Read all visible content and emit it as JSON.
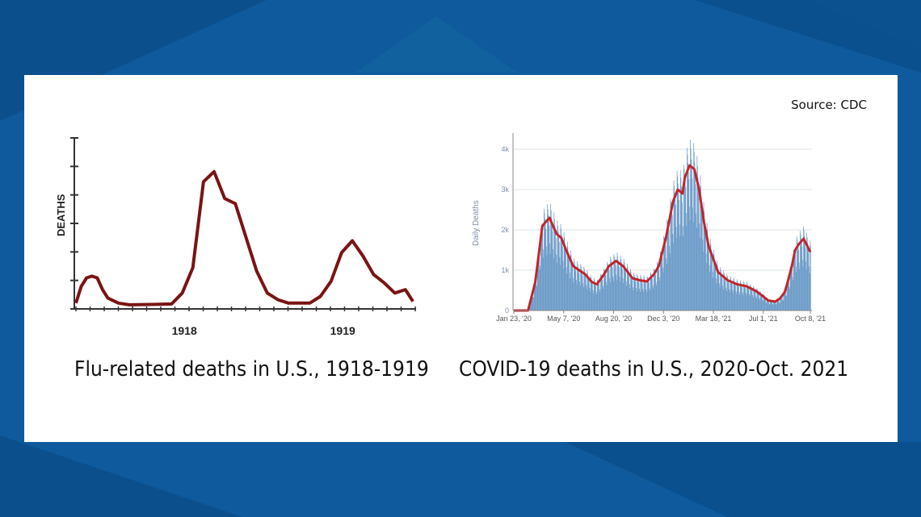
{
  "source": "Source: CDC",
  "colors": {
    "background": "#0e5a9c",
    "flu_line": "#7a1414",
    "covid_line": "#c0262d",
    "covid_bars": "#6e9dc9",
    "covid_axis_text": "#7b8fa8"
  },
  "chart_data": [
    {
      "type": "line",
      "caption": "Flu-related deaths in U.S., 1918-1919",
      "ylabel": "DEATHS",
      "tick_labels": [
        "1918",
        "1919"
      ],
      "y_ticks": 6,
      "y_range": [
        0,
        100
      ],
      "x": [
        0,
        0.5,
        1.0,
        1.5,
        2.0,
        2.5,
        3.0,
        4.0,
        5.0,
        7.0,
        9.0,
        10.0,
        11.0,
        12.0,
        13.0,
        14.0,
        15.0,
        16.0,
        17.0,
        18.0,
        19.0,
        20.0,
        21.0,
        22.0,
        23.0,
        24.0,
        25.0,
        26.0,
        27.0,
        28.0,
        29.0,
        30.0,
        31.0,
        31.7
      ],
      "values": [
        2,
        12,
        17,
        18,
        17,
        10,
        5,
        2,
        1,
        1.2,
        1.5,
        8,
        23,
        74,
        80,
        64,
        61,
        41,
        21,
        8,
        4,
        2,
        2,
        2,
        6,
        15,
        32,
        39,
        30,
        19,
        14,
        8,
        10,
        3
      ],
      "year_tick_positions": [
        10.2,
        25.1
      ]
    },
    {
      "type": "bar",
      "caption": "COVID-19 deaths in U.S., 2020-Oct. 2021",
      "ylabel": "Daily Deaths",
      "y_ticks": [
        "0",
        "1k",
        "2k",
        "3k",
        "4k"
      ],
      "ylim": [
        0,
        4400
      ],
      "x_ticks": [
        "Jan 23, '20",
        "May 7, '20",
        "Aug 20, '20",
        "Dec 3, '20",
        "Mar 18, '21",
        "Jul 1, '21",
        "Oct 8, '21"
      ],
      "x_tick_days": [
        0,
        105,
        210,
        315,
        420,
        525,
        624
      ],
      "grid": true,
      "avg_days": [
        0,
        30,
        45,
        60,
        75,
        90,
        100,
        110,
        125,
        150,
        165,
        175,
        190,
        200,
        215,
        230,
        250,
        265,
        280,
        295,
        305,
        320,
        335,
        345,
        355,
        360,
        370,
        380,
        390,
        400,
        410,
        430,
        450,
        470,
        490,
        510,
        525,
        535,
        550,
        560,
        570,
        575,
        585,
        592,
        600,
        610,
        624
      ],
      "avg_values": [
        0,
        0,
        700,
        2100,
        2300,
        1900,
        1800,
        1500,
        1100,
        900,
        700,
        650,
        900,
        1100,
        1230,
        1100,
        800,
        750,
        720,
        900,
        1100,
        1800,
        2700,
        3000,
        2900,
        3300,
        3600,
        3500,
        3000,
        2200,
        1600,
        950,
        750,
        650,
        600,
        480,
        350,
        250,
        220,
        300,
        450,
        650,
        1100,
        1500,
        1650,
        1780,
        1450
      ]
    }
  ],
  "flu_caption": "Flu-related deaths in U.S., 1918-1919",
  "covid_caption": "COVID-19 deaths in U.S., 2020-Oct. 2021"
}
